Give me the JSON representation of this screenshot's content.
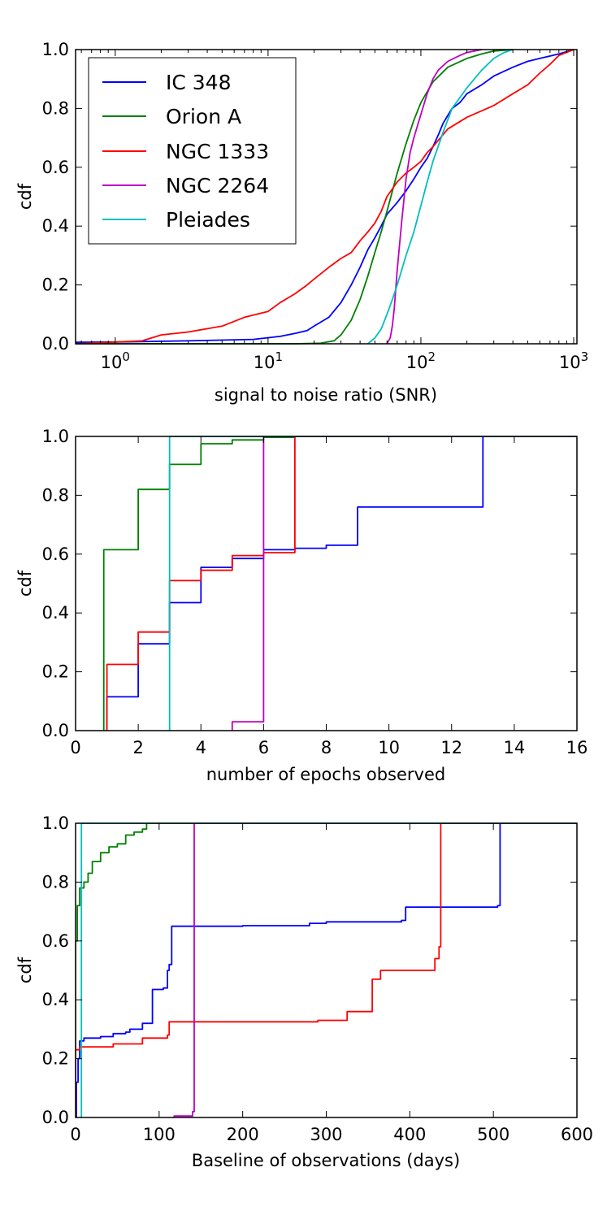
{
  "colors": {
    "IC 348": "#0000ff",
    "Orion A": "#008000",
    "NGC 1333": "#ff0000",
    "NGC 2264": "#bf00bf",
    "Pleiades": "#00bfbf"
  },
  "legend": {
    "placement": "upper-left of top panel",
    "entries": [
      "IC 348",
      "Orion A",
      "NGC 1333",
      "NGC 2264",
      "Pleiades"
    ]
  },
  "chart_data": [
    {
      "type": "line",
      "id": "snr",
      "xscale": "log",
      "xlim": [
        0.55,
        1050
      ],
      "ylim": [
        0,
        1
      ],
      "xlabel": "signal to noise ratio (SNR)",
      "ylabel": "cdf",
      "grid": false,
      "xticks": [
        {
          "value": 1,
          "base": "10",
          "exp": "0"
        },
        {
          "value": 10,
          "base": "10",
          "exp": "1"
        },
        {
          "value": 100,
          "base": "10",
          "exp": "2"
        },
        {
          "value": 1000,
          "base": "10",
          "exp": "3"
        }
      ],
      "yticks": [
        "0.0",
        "0.2",
        "0.4",
        "0.6",
        "0.8",
        "1.0"
      ],
      "series": [
        {
          "name": "IC 348",
          "step": false,
          "x": [
            0.55,
            1,
            3,
            8,
            12,
            15,
            18,
            20,
            25,
            30,
            35,
            40,
            45,
            50,
            55,
            60,
            70,
            80,
            90,
            100,
            110,
            120,
            130,
            140,
            160,
            180,
            200,
            250,
            300,
            400,
            500,
            600,
            800,
            1000
          ],
          "y": [
            0.005,
            0.006,
            0.01,
            0.015,
            0.025,
            0.035,
            0.045,
            0.06,
            0.09,
            0.14,
            0.2,
            0.26,
            0.32,
            0.36,
            0.4,
            0.44,
            0.48,
            0.52,
            0.56,
            0.6,
            0.63,
            0.67,
            0.71,
            0.75,
            0.8,
            0.82,
            0.85,
            0.88,
            0.91,
            0.94,
            0.96,
            0.97,
            0.985,
            1.0
          ]
        },
        {
          "name": "Orion A",
          "step": false,
          "x": [
            0.55,
            15,
            22,
            27,
            30,
            35,
            40,
            45,
            50,
            55,
            60,
            70,
            80,
            90,
            100,
            120,
            150,
            200,
            250,
            300,
            400
          ],
          "y": [
            0.0,
            0.0,
            0.002,
            0.01,
            0.03,
            0.08,
            0.15,
            0.23,
            0.31,
            0.38,
            0.45,
            0.58,
            0.68,
            0.76,
            0.82,
            0.89,
            0.94,
            0.97,
            0.985,
            0.995,
            1.0
          ]
        },
        {
          "name": "NGC 1333",
          "step": false,
          "x": [
            0.55,
            1.5,
            2,
            3,
            5,
            7,
            10,
            12,
            15,
            18,
            20,
            25,
            30,
            35,
            40,
            45,
            50,
            55,
            60,
            70,
            80,
            90,
            100,
            110,
            120,
            150,
            200,
            300,
            400,
            500,
            600,
            700,
            800,
            1000
          ],
          "y": [
            0.0,
            0.01,
            0.03,
            0.04,
            0.06,
            0.09,
            0.11,
            0.14,
            0.17,
            0.2,
            0.22,
            0.26,
            0.29,
            0.31,
            0.35,
            0.38,
            0.41,
            0.45,
            0.5,
            0.55,
            0.58,
            0.6,
            0.62,
            0.65,
            0.67,
            0.73,
            0.77,
            0.81,
            0.85,
            0.88,
            0.92,
            0.95,
            0.98,
            1.0
          ]
        },
        {
          "name": "NGC 2264",
          "step": false,
          "x": [
            60,
            63,
            65,
            67,
            70,
            75,
            80,
            85,
            90,
            100,
            110,
            120,
            130,
            150,
            180,
            200,
            250
          ],
          "y": [
            0.0,
            0.02,
            0.06,
            0.12,
            0.25,
            0.42,
            0.56,
            0.65,
            0.7,
            0.78,
            0.85,
            0.9,
            0.93,
            0.96,
            0.98,
            0.99,
            1.0
          ]
        },
        {
          "name": "Pleiades",
          "step": false,
          "x": [
            45,
            50,
            55,
            60,
            65,
            70,
            80,
            90,
            100,
            110,
            120,
            140,
            160,
            200,
            250,
            300,
            350,
            400
          ],
          "y": [
            0.0,
            0.02,
            0.05,
            0.1,
            0.15,
            0.2,
            0.3,
            0.38,
            0.47,
            0.55,
            0.62,
            0.72,
            0.8,
            0.87,
            0.93,
            0.97,
            0.99,
            1.0
          ]
        }
      ]
    },
    {
      "type": "line",
      "id": "epochs",
      "xscale": "linear",
      "xlim": [
        0,
        16
      ],
      "ylim": [
        0,
        1
      ],
      "xlabel": "number of epochs observed",
      "ylabel": "cdf",
      "grid": false,
      "xticks": [
        "0",
        "2",
        "4",
        "6",
        "8",
        "10",
        "12",
        "14",
        "16"
      ],
      "yticks": [
        "0.0",
        "0.2",
        "0.4",
        "0.6",
        "0.8",
        "1.0"
      ],
      "series": [
        {
          "name": "IC 348",
          "step": true,
          "x": [
            1,
            2,
            3,
            4,
            5,
            6,
            7,
            8,
            9,
            13
          ],
          "y": [
            0.115,
            0.295,
            0.435,
            0.555,
            0.585,
            0.615,
            0.62,
            0.63,
            0.76,
            1.0
          ]
        },
        {
          "name": "Orion A",
          "step": true,
          "x": [
            0.9,
            2,
            3,
            4,
            5,
            6,
            7,
            16
          ],
          "y": [
            0.615,
            0.82,
            0.905,
            0.975,
            0.988,
            0.997,
            1.0,
            1.0
          ]
        },
        {
          "name": "NGC 1333",
          "step": true,
          "x": [
            1,
            2,
            3,
            4,
            5,
            6,
            7
          ],
          "y": [
            0.225,
            0.335,
            0.51,
            0.545,
            0.595,
            0.605,
            1.0
          ]
        },
        {
          "name": "NGC 2264",
          "step": true,
          "x": [
            5,
            6
          ],
          "y": [
            0.03,
            1.0
          ]
        },
        {
          "name": "Pleiades",
          "step": true,
          "x": [
            3
          ],
          "y": [
            1.0
          ]
        }
      ]
    },
    {
      "type": "line",
      "id": "baseline",
      "xscale": "linear",
      "xlim": [
        0,
        600
      ],
      "ylim": [
        0,
        1
      ],
      "xlabel": "Baseline of observations (days)",
      "ylabel": "cdf",
      "grid": false,
      "xticks": [
        "0",
        "100",
        "200",
        "300",
        "400",
        "500",
        "600"
      ],
      "yticks": [
        "0.0",
        "0.2",
        "0.4",
        "0.6",
        "0.8",
        "1.0"
      ],
      "series": [
        {
          "name": "IC 348",
          "step": true,
          "x": [
            1,
            3,
            5,
            10,
            30,
            45,
            60,
            65,
            80,
            92,
            105,
            110,
            112,
            115,
            200,
            280,
            300,
            390,
            395,
            505,
            508
          ],
          "y": [
            0.12,
            0.2,
            0.26,
            0.27,
            0.275,
            0.285,
            0.29,
            0.3,
            0.32,
            0.435,
            0.44,
            0.5,
            0.52,
            0.65,
            0.652,
            0.66,
            0.665,
            0.67,
            0.715,
            0.72,
            1.0
          ]
        },
        {
          "name": "Orion A",
          "step": true,
          "x": [
            0,
            2,
            5,
            10,
            15,
            20,
            30,
            40,
            50,
            60,
            70,
            80,
            85
          ],
          "y": [
            0.6,
            0.72,
            0.78,
            0.8,
            0.83,
            0.87,
            0.9,
            0.92,
            0.93,
            0.96,
            0.97,
            0.98,
            1.0
          ]
        },
        {
          "name": "NGC 1333",
          "step": true,
          "x": [
            0,
            5,
            45,
            80,
            110,
            112,
            290,
            325,
            355,
            365,
            430,
            435,
            437
          ],
          "y": [
            0.23,
            0.24,
            0.25,
            0.27,
            0.28,
            0.325,
            0.33,
            0.36,
            0.47,
            0.5,
            0.54,
            0.58,
            1.0
          ]
        },
        {
          "name": "NGC 2264",
          "step": true,
          "x": [
            118,
            140,
            142
          ],
          "y": [
            0.005,
            0.02,
            1.0
          ]
        },
        {
          "name": "Pleiades",
          "step": true,
          "x": [
            6,
            7
          ],
          "y": [
            0.0,
            1.0
          ]
        }
      ]
    }
  ]
}
